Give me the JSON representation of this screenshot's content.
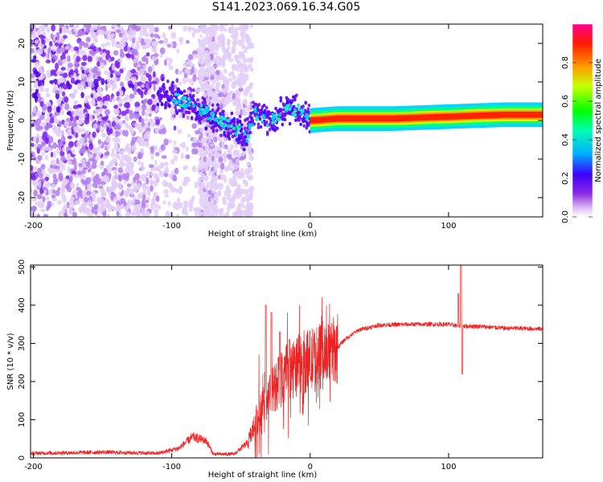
{
  "title": "S141.2023.069.16.34.G05",
  "chart_data": [
    {
      "type": "heatmap",
      "xlabel": "Height of straight line (km)",
      "ylabel": "Frequency (Hz)",
      "xlim": [
        -202,
        168
      ],
      "ylim": [
        -25,
        25
      ],
      "x_ticks": [
        -200,
        -100,
        0,
        100
      ],
      "y_ticks": [
        -20,
        -10,
        0,
        10,
        20
      ],
      "colorbar": {
        "label": "Normalized spectral amplitude",
        "range": [
          0,
          1
        ],
        "ticks": [
          "0.0",
          "0.2",
          "0.4",
          "0.6",
          "0.8"
        ]
      },
      "ridge": [
        {
          "x": -150,
          "f": 8
        },
        {
          "x": -130,
          "f": 9
        },
        {
          "x": -100,
          "f": 6
        },
        {
          "x": -85,
          "f": 4
        },
        {
          "x": -70,
          "f": 1
        },
        {
          "x": -55,
          "f": -2
        },
        {
          "x": -45,
          "f": -4
        },
        {
          "x": -40,
          "f": 2
        },
        {
          "x": -30,
          "f": 0
        },
        {
          "x": -20,
          "f": 2
        },
        {
          "x": -10,
          "f": 3
        },
        {
          "x": 0,
          "f": 0
        },
        {
          "x": 20,
          "f": 0.5
        },
        {
          "x": 60,
          "f": 0.5
        },
        {
          "x": 100,
          "f": 1
        },
        {
          "x": 140,
          "f": 1.5
        },
        {
          "x": 168,
          "f": 1.5
        }
      ]
    },
    {
      "type": "line",
      "xlabel": "Height of straight line (km)",
      "ylabel": "SNR (10 * v/v)",
      "xlim": [
        -202,
        168
      ],
      "ylim": [
        0,
        505
      ],
      "x_ticks": [
        -200,
        -100,
        0,
        100
      ],
      "y_ticks": [
        0,
        100,
        200,
        300,
        400,
        500
      ],
      "line_color": "#ee2222",
      "envelope": [
        {
          "x": -202,
          "y": 12
        },
        {
          "x": -150,
          "y": 15
        },
        {
          "x": -110,
          "y": 12
        },
        {
          "x": -95,
          "y": 25
        },
        {
          "x": -85,
          "y": 55
        },
        {
          "x": -75,
          "y": 45
        },
        {
          "x": -70,
          "y": 10
        },
        {
          "x": -55,
          "y": 10
        },
        {
          "x": -45,
          "y": 40
        },
        {
          "x": -35,
          "y": 130
        },
        {
          "x": -25,
          "y": 190
        },
        {
          "x": -15,
          "y": 230
        },
        {
          "x": -5,
          "y": 250
        },
        {
          "x": 5,
          "y": 260
        },
        {
          "x": 15,
          "y": 270
        },
        {
          "x": 25,
          "y": 310
        },
        {
          "x": 35,
          "y": 335
        },
        {
          "x": 50,
          "y": 348
        },
        {
          "x": 75,
          "y": 350
        },
        {
          "x": 100,
          "y": 350
        },
        {
          "x": 108,
          "y": 345
        },
        {
          "x": 120,
          "y": 345
        },
        {
          "x": 140,
          "y": 340
        },
        {
          "x": 168,
          "y": 338
        }
      ],
      "spikes": [
        {
          "x": -32,
          "y_max": 400
        },
        {
          "x": -28,
          "y_max": 380
        },
        {
          "x": -22,
          "y_max": 330
        },
        {
          "x": -15,
          "y_max": 310
        },
        {
          "x": 107,
          "y_max": 430
        },
        {
          "x": 109,
          "y_max": 505
        },
        {
          "x": 110,
          "y_min": 220
        }
      ]
    }
  ]
}
